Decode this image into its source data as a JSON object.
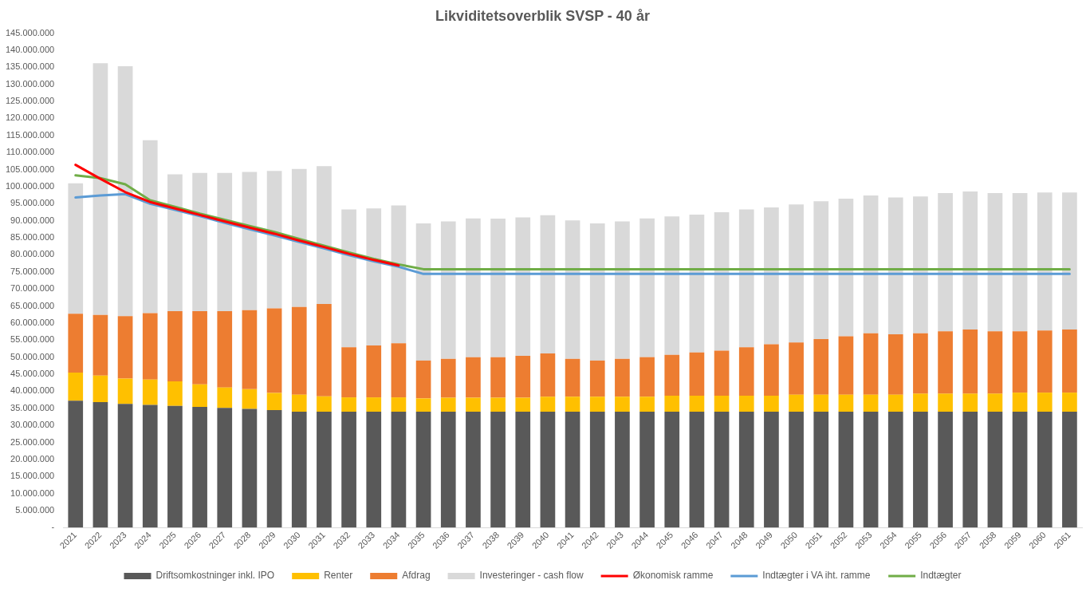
{
  "chart_data": {
    "type": "bar",
    "title": "Likviditetsoverblik SVSP - 40 år",
    "stacked": true,
    "legend": "bottom",
    "grid": false,
    "marker": "none",
    "line_style": "solid",
    "categories": [
      "2021",
      "2022",
      "2023",
      "2024",
      "2025",
      "2026",
      "2027",
      "2028",
      "2029",
      "2030",
      "2031",
      "2032",
      "2033",
      "2034",
      "2035",
      "2036",
      "2037",
      "2038",
      "2039",
      "2040",
      "2041",
      "2042",
      "2043",
      "2044",
      "2045",
      "2046",
      "2047",
      "2048",
      "2049",
      "2050",
      "2051",
      "2052",
      "2053",
      "2054",
      "2055",
      "2056",
      "2057",
      "2058",
      "2059",
      "2060",
      "2061"
    ],
    "ylim": [
      0,
      145000000
    ],
    "yticks": [
      {
        "value": 0,
        "label": "-"
      },
      {
        "value": 5000000,
        "label": "5.000.000"
      },
      {
        "value": 10000000,
        "label": "10.000.000"
      },
      {
        "value": 15000000,
        "label": "15.000.000"
      },
      {
        "value": 20000000,
        "label": "20.000.000"
      },
      {
        "value": 25000000,
        "label": "25.000.000"
      },
      {
        "value": 30000000,
        "label": "30.000.000"
      },
      {
        "value": 35000000,
        "label": "35.000.000"
      },
      {
        "value": 40000000,
        "label": "40.000.000"
      },
      {
        "value": 45000000,
        "label": "45.000.000"
      },
      {
        "value": 50000000,
        "label": "50.000.000"
      },
      {
        "value": 55000000,
        "label": "55.000.000"
      },
      {
        "value": 60000000,
        "label": "60.000.000"
      },
      {
        "value": 65000000,
        "label": "65.000.000"
      },
      {
        "value": 70000000,
        "label": "70.000.000"
      },
      {
        "value": 75000000,
        "label": "75.000.000"
      },
      {
        "value": 80000000,
        "label": "80.000.000"
      },
      {
        "value": 85000000,
        "label": "85.000.000"
      },
      {
        "value": 90000000,
        "label": "90.000.000"
      },
      {
        "value": 95000000,
        "label": "95.000.000"
      },
      {
        "value": 100000000,
        "label": "100.000.000"
      },
      {
        "value": 105000000,
        "label": "105.000.000"
      },
      {
        "value": 110000000,
        "label": "110.000.000"
      },
      {
        "value": 115000000,
        "label": "115.000.000"
      },
      {
        "value": 120000000,
        "label": "120.000.000"
      },
      {
        "value": 125000000,
        "label": "125.000.000"
      },
      {
        "value": 130000000,
        "label": "130.000.000"
      },
      {
        "value": 135000000,
        "label": "135.000.000"
      },
      {
        "value": 140000000,
        "label": "140.000.000"
      },
      {
        "value": 145000000,
        "label": "145.000.000"
      }
    ],
    "series": [
      {
        "name": "Driftsomkostninger inkl. IPO",
        "color": "#595959",
        "values": [
          37200000,
          36800000,
          36300000,
          36000000,
          35700000,
          35400000,
          35100000,
          34800000,
          34500000,
          34000000,
          34000000,
          34000000,
          34000000,
          34000000,
          34000000,
          34000000,
          34000000,
          34000000,
          34000000,
          34000000,
          34000000,
          34000000,
          34000000,
          34000000,
          34000000,
          34000000,
          34000000,
          34000000,
          34000000,
          34000000,
          34000000,
          34000000,
          34000000,
          34000000,
          34000000,
          34000000,
          34000000,
          34000000,
          34000000,
          34000000,
          34000000
        ]
      },
      {
        "name": "Renter",
        "color": "#ffc000",
        "values": [
          8300000,
          7800000,
          7400000,
          7400000,
          7200000,
          6600000,
          6000000,
          5800000,
          5000000,
          5000000,
          4500000,
          4200000,
          4200000,
          4200000,
          3900000,
          4100000,
          4100000,
          4100000,
          4100000,
          4400000,
          4400000,
          4400000,
          4400000,
          4400000,
          4700000,
          4700000,
          4700000,
          4700000,
          4700000,
          5000000,
          5000000,
          5000000,
          5000000,
          5000000,
          5300000,
          5300000,
          5300000,
          5300000,
          5600000,
          5600000,
          5600000
        ]
      },
      {
        "name": "Afdrag",
        "color": "#ed7d31",
        "values": [
          17200000,
          17800000,
          18300000,
          19500000,
          20600000,
          21500000,
          22400000,
          23200000,
          24800000,
          25700000,
          27100000,
          14700000,
          15200000,
          15900000,
          11100000,
          11400000,
          11900000,
          11900000,
          12300000,
          12700000,
          11100000,
          10600000,
          11100000,
          11600000,
          12000000,
          12700000,
          13200000,
          14200000,
          15100000,
          15300000,
          16300000,
          17100000,
          18000000,
          17700000,
          17700000,
          18300000,
          18800000,
          18300000,
          18000000,
          18200000,
          18500000
        ]
      },
      {
        "name": "Investeringer - cash flow",
        "color": "#d9d9d9",
        "values": [
          38300000,
          73800000,
          73300000,
          50700000,
          40100000,
          40500000,
          40500000,
          40500000,
          40300000,
          40500000,
          40400000,
          40400000,
          40200000,
          40400000,
          40200000,
          40300000,
          40700000,
          40600000,
          40600000,
          40500000,
          40600000,
          40200000,
          40300000,
          40700000,
          40600000,
          40400000,
          40600000,
          40400000,
          40100000,
          40500000,
          40400000,
          40400000,
          40400000,
          40100000,
          40100000,
          40500000,
          40500000,
          40500000,
          40500000,
          40500000,
          40200000
        ]
      },
      {
        "name": "Økonomisk ramme",
        "type": "line",
        "color": "#ff0000",
        "values": [
          106400000,
          102300000,
          98400000,
          95500000,
          93600000,
          91700000,
          89800000,
          88000000,
          86200000,
          84200000,
          82300000,
          80300000,
          78500000,
          76900000,
          null,
          null,
          null,
          null,
          null,
          null,
          null,
          null,
          null,
          null,
          null,
          null,
          null,
          null,
          null,
          null,
          null,
          null,
          null,
          null,
          null,
          null,
          null,
          null,
          null,
          null,
          null
        ]
      },
      {
        "name": "Indtægter i VA iht. ramme",
        "type": "line",
        "color": "#5b9bd5",
        "values": [
          96800000,
          97400000,
          97800000,
          95000000,
          93200000,
          91400000,
          89400000,
          87500000,
          85700000,
          83800000,
          81900000,
          79900000,
          78100000,
          76500000,
          74400000,
          74400000,
          74400000,
          74400000,
          74400000,
          74400000,
          74400000,
          74400000,
          74400000,
          74400000,
          74400000,
          74400000,
          74400000,
          74400000,
          74400000,
          74400000,
          74400000,
          74400000,
          74400000,
          74400000,
          74400000,
          74400000,
          74400000,
          74400000,
          74400000,
          74400000,
          74400000
        ]
      },
      {
        "name": "Indtægter",
        "type": "line",
        "color": "#70ad47",
        "values": [
          103300000,
          102500000,
          100700000,
          96000000,
          94100000,
          92100000,
          90300000,
          88500000,
          86700000,
          84700000,
          82700000,
          80700000,
          78800000,
          77200000,
          75800000,
          75800000,
          75800000,
          75800000,
          75800000,
          75800000,
          75800000,
          75800000,
          75800000,
          75800000,
          75800000,
          75800000,
          75800000,
          75800000,
          75800000,
          75800000,
          75800000,
          75800000,
          75800000,
          75800000,
          75800000,
          75800000,
          75800000,
          75800000,
          75800000,
          75800000,
          75800000
        ]
      }
    ]
  }
}
